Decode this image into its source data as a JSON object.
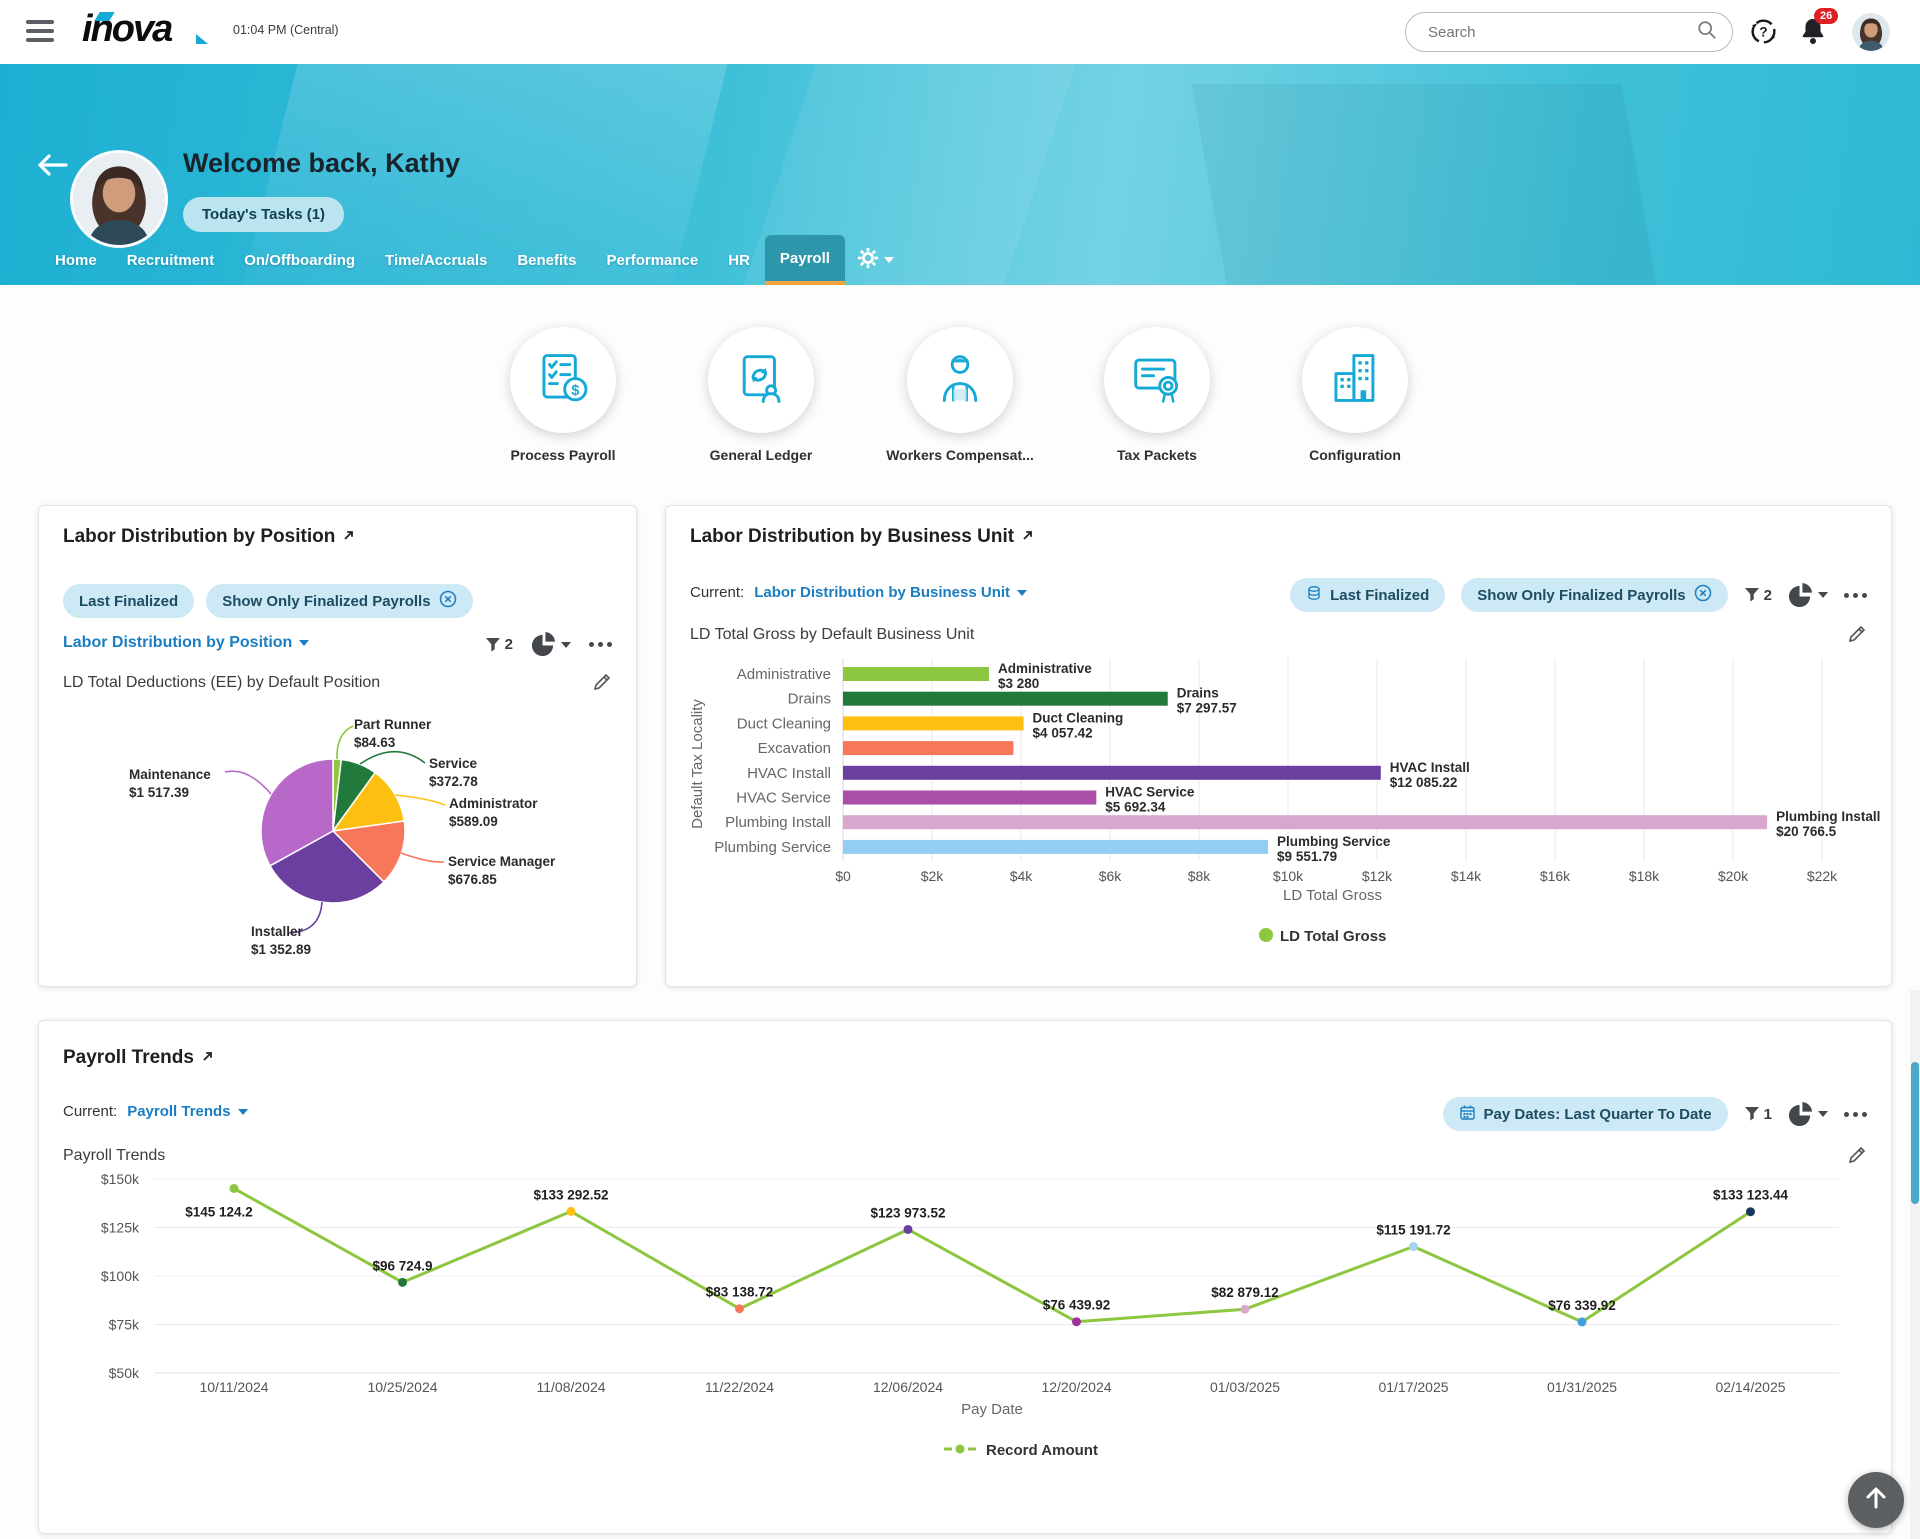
{
  "topbar": {
    "logo_text": "inova",
    "time": "01:04 PM (Central)",
    "search_placeholder": "Search",
    "notification_count": "26"
  },
  "hero": {
    "welcome": "Welcome back, Kathy",
    "tasks_button": "Today's Tasks (1)"
  },
  "nav": {
    "tabs": [
      {
        "label": "Home"
      },
      {
        "label": "Recruitment"
      },
      {
        "label": "On/Offboarding"
      },
      {
        "label": "Time/Accruals"
      },
      {
        "label": "Benefits"
      },
      {
        "label": "Performance"
      },
      {
        "label": "HR"
      },
      {
        "label": "Payroll",
        "active": true
      }
    ]
  },
  "shortcuts": [
    {
      "label": "Process Payroll",
      "icon": "process-payroll-icon"
    },
    {
      "label": "General Ledger",
      "icon": "general-ledger-icon"
    },
    {
      "label": "Workers Compensat...",
      "icon": "workers-compensation-icon"
    },
    {
      "label": "Tax Packets",
      "icon": "tax-packets-icon"
    },
    {
      "label": "Configuration",
      "icon": "configuration-icon"
    }
  ],
  "cards": {
    "position": {
      "title": "Labor Distribution by Position",
      "chips": [
        "Last Finalized",
        "Show Only Finalized Payrolls"
      ],
      "selector": "Labor Distribution by Position",
      "filter_count": "2",
      "subtitle": "LD Total Deductions (EE) by Default Position"
    },
    "business_unit": {
      "title": "Labor Distribution by Business Unit",
      "current_label": "Current:",
      "selector": "Labor Distribution by Business Unit",
      "chips": [
        "Last Finalized",
        "Show Only Finalized Payrolls"
      ],
      "filter_count": "2",
      "subtitle": "LD Total Gross by Default Business Unit"
    },
    "trends": {
      "title": "Payroll Trends",
      "current_label": "Current:",
      "selector": "Payroll Trends",
      "chip": "Pay Dates: Last Quarter To Date",
      "filter_count": "1",
      "subtitle": "Payroll Trends"
    }
  },
  "chart_data": [
    {
      "id": "position_pie",
      "type": "pie",
      "title": "LD Total Deductions (EE) by Default Position",
      "slices": [
        {
          "label": "Part Runner",
          "value": 84.63,
          "display": "$84.63",
          "color": "#8dc63f"
        },
        {
          "label": "Service",
          "value": 372.78,
          "display": "$372.78",
          "color": "#217a3c"
        },
        {
          "label": "Administrator",
          "value": 589.09,
          "display": "$589.09",
          "color": "#fdc010"
        },
        {
          "label": "Service Manager",
          "value": 676.85,
          "display": "$676.85",
          "color": "#f8775a"
        },
        {
          "label": "Installer",
          "value": 1352.89,
          "display": "$1 352.89",
          "color": "#6a3fa0"
        },
        {
          "label": "Maintenance",
          "value": 1517.39,
          "display": "$1 517.39",
          "color": "#b768c8"
        }
      ]
    },
    {
      "id": "business_unit_bar",
      "type": "bar",
      "orientation": "horizontal",
      "ylabel": "Default Tax Locality",
      "xlabel": "LD Total Gross",
      "xlim": [
        0,
        22000
      ],
      "xticks": [
        "$0",
        "$2k",
        "$4k",
        "$6k",
        "$8k",
        "$10k",
        "$12k",
        "$14k",
        "$16k",
        "$18k",
        "$20k",
        "$22k"
      ],
      "legend": [
        {
          "label": "LD Total Gross",
          "color": "#8dc63f"
        }
      ],
      "bars": [
        {
          "category": "Administrative",
          "value": 3280,
          "display": "$3 280",
          "color": "#8dc63f",
          "show_label": true
        },
        {
          "category": "Drains",
          "value": 7297.57,
          "display": "$7 297.57",
          "color": "#217a3c",
          "show_label": true
        },
        {
          "category": "Duct Cleaning",
          "value": 4057.42,
          "display": "$4 057.42",
          "color": "#fdc010",
          "show_label": true
        },
        {
          "category": "Excavation",
          "value": 3830,
          "display": "",
          "color": "#f8775a",
          "show_label": false
        },
        {
          "category": "HVAC Install",
          "value": 12085.22,
          "display": "$12 085.22",
          "color": "#6a3fa0",
          "show_label": true
        },
        {
          "category": "HVAC Service",
          "value": 5692.34,
          "display": "$5 692.34",
          "color": "#aa4fa5",
          "show_label": true
        },
        {
          "category": "Plumbing Install",
          "value": 20766.5,
          "display": "$20 766.5",
          "color": "#d9a6ce",
          "show_label": true
        },
        {
          "category": "Plumbing Service",
          "value": 9551.79,
          "display": "$9 551.79",
          "color": "#92cdf4",
          "show_label": true
        }
      ]
    },
    {
      "id": "payroll_trends_line",
      "type": "line",
      "ylabel": "Record Amount",
      "xlabel": "Pay Date",
      "ylim": [
        50000,
        150000
      ],
      "yticks": [
        "$150k",
        "$125k",
        "$100k",
        "$75k",
        "$50k"
      ],
      "line_color": "#8dc63f",
      "legend": [
        {
          "label": "Record Amount",
          "color": "#8dc63f"
        }
      ],
      "points": [
        {
          "x": "10/11/2024",
          "value": 145124.2,
          "display": "$145 124.2",
          "color": "#8dc63f",
          "label_below": true
        },
        {
          "x": "10/25/2024",
          "value": 96724.9,
          "display": "$96 724.9",
          "color": "#217a3c"
        },
        {
          "x": "11/08/2024",
          "value": 133292.52,
          "display": "$133 292.52",
          "color": "#fdc010"
        },
        {
          "x": "11/22/2024",
          "value": 83138.72,
          "display": "$83 138.72",
          "color": "#f8775a"
        },
        {
          "x": "12/06/2024",
          "value": 123973.52,
          "display": "$123 973.52",
          "color": "#6a3fa0"
        },
        {
          "x": "12/20/2024",
          "value": 76439.92,
          "display": "$76 439.92",
          "color": "#a0309a"
        },
        {
          "x": "01/03/2025",
          "value": 82879.12,
          "display": "$82 879.12",
          "color": "#d9a6ce"
        },
        {
          "x": "01/17/2025",
          "value": 115191.72,
          "display": "$115 191.72",
          "color": "#a5d3f0"
        },
        {
          "x": "01/31/2025",
          "value": 76339.92,
          "display": "$76 339.92",
          "color": "#3f9fdf"
        },
        {
          "x": "02/14/2025",
          "value": 133123.44,
          "display": "$133 123.44",
          "color": "#16365c"
        }
      ]
    }
  ]
}
